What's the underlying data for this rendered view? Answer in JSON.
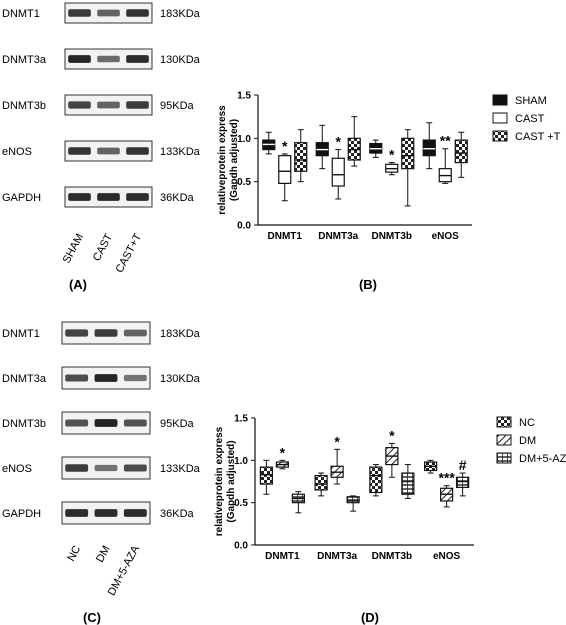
{
  "panel_labels": {
    "a": "(A)",
    "b": "(B)",
    "c": "(C)",
    "d": "(D)"
  },
  "blot_top": {
    "rows": [
      {
        "label": "DNMT1",
        "size": "183KDa",
        "intensity": [
          0.8,
          0.55,
          0.85
        ]
      },
      {
        "label": "DNMT3a",
        "size": "130KDa",
        "intensity": [
          0.95,
          0.5,
          0.9
        ]
      },
      {
        "label": "DNMT3b",
        "size": "95KDa",
        "intensity": [
          0.75,
          0.55,
          0.8
        ]
      },
      {
        "label": "eNOS",
        "size": "133KDa",
        "intensity": [
          0.85,
          0.55,
          0.85
        ]
      },
      {
        "label": "GAPDH",
        "size": "36KDa",
        "intensity": [
          0.9,
          0.9,
          0.9
        ]
      }
    ],
    "lanes": [
      "SHAM",
      "CAST",
      "CAST+T"
    ]
  },
  "blot_bottom": {
    "rows": [
      {
        "label": "DNMT1",
        "size": "183KDa",
        "intensity": [
          0.75,
          0.8,
          0.55
        ]
      },
      {
        "label": "DNMT3a",
        "size": "130KDa",
        "intensity": [
          0.7,
          0.95,
          0.45
        ]
      },
      {
        "label": "DNMT3b",
        "size": "95KDa",
        "intensity": [
          0.65,
          0.95,
          0.65
        ]
      },
      {
        "label": "eNOS",
        "size": "133KDa",
        "intensity": [
          0.8,
          0.45,
          0.7
        ]
      },
      {
        "label": "GAPDH",
        "size": "36KDa",
        "intensity": [
          0.9,
          0.9,
          0.9
        ]
      }
    ],
    "lanes": [
      "NC",
      "DM",
      "DM+5-AZA"
    ]
  },
  "chart_data": [
    {
      "type": "boxplot",
      "ylabel": "relativeprotein express\n(Gapdh adjusted)",
      "ylim": [
        0,
        1.5
      ],
      "yticks": [
        "0.0",
        "0.5",
        "1.0",
        "1.5"
      ],
      "categories": [
        "DNMT1",
        "DNMT3a",
        "DNMT3b",
        "eNOS"
      ],
      "legend_position": "right",
      "series": [
        {
          "name": "SHAM",
          "pattern": "solid",
          "boxes": [
            {
              "min": 0.82,
              "q1": 0.87,
              "median": 0.93,
              "q3": 0.98,
              "max": 1.07
            },
            {
              "min": 0.65,
              "q1": 0.8,
              "median": 0.87,
              "q3": 0.95,
              "max": 1.15
            },
            {
              "min": 0.78,
              "q1": 0.83,
              "median": 0.88,
              "q3": 0.94,
              "max": 0.98
            },
            {
              "min": 0.65,
              "q1": 0.8,
              "median": 0.88,
              "q3": 0.98,
              "max": 1.18
            }
          ]
        },
        {
          "name": "CAST",
          "pattern": "open",
          "boxes": [
            {
              "min": 0.28,
              "q1": 0.48,
              "median": 0.62,
              "q3": 0.8,
              "max": 0.82
            },
            {
              "min": 0.3,
              "q1": 0.45,
              "median": 0.58,
              "q3": 0.77,
              "max": 0.87
            },
            {
              "min": 0.58,
              "q1": 0.61,
              "median": 0.65,
              "q3": 0.7,
              "max": 0.72
            },
            {
              "min": 0.48,
              "q1": 0.5,
              "median": 0.57,
              "q3": 0.65,
              "max": 0.88
            }
          ]
        },
        {
          "name": "CAST +T",
          "pattern": "checker",
          "boxes": [
            {
              "min": 0.5,
              "q1": 0.62,
              "median": 0.75,
              "q3": 0.95,
              "max": 1.1
            },
            {
              "min": 0.68,
              "q1": 0.75,
              "median": 0.87,
              "q3": 1.0,
              "max": 1.25
            },
            {
              "min": 0.22,
              "q1": 0.65,
              "median": 0.8,
              "q3": 1.0,
              "max": 1.1
            },
            {
              "min": 0.55,
              "q1": 0.72,
              "median": 0.83,
              "q3": 0.98,
              "max": 1.07
            }
          ]
        }
      ],
      "annotations": [
        {
          "category": "DNMT1",
          "series": "CAST",
          "text": "*"
        },
        {
          "category": "DNMT3a",
          "series": "CAST",
          "text": "*"
        },
        {
          "category": "DNMT3b",
          "series": "CAST",
          "text": "*"
        },
        {
          "category": "eNOS",
          "series": "CAST",
          "text": "**"
        }
      ]
    },
    {
      "type": "boxplot",
      "ylabel": "relativeprotein express\n(Gapdh adjusted)",
      "ylim": [
        0,
        1.5
      ],
      "yticks": [
        "0.0",
        "0.5",
        "1.0",
        "1.5"
      ],
      "categories": [
        "DNMT1",
        "DNMT3a",
        "DNMT3b",
        "eNOS"
      ],
      "legend_position": "right",
      "series": [
        {
          "name": "NC",
          "pattern": "checker",
          "boxes": [
            {
              "min": 0.6,
              "q1": 0.72,
              "median": 0.83,
              "q3": 0.92,
              "max": 1.0
            },
            {
              "min": 0.58,
              "q1": 0.65,
              "median": 0.72,
              "q3": 0.82,
              "max": 0.85
            },
            {
              "min": 0.58,
              "q1": 0.62,
              "median": 0.82,
              "q3": 0.92,
              "max": 0.95
            },
            {
              "min": 0.85,
              "q1": 0.88,
              "median": 0.93,
              "q3": 0.98,
              "max": 1.0
            }
          ]
        },
        {
          "name": "DM",
          "pattern": "hatch",
          "boxes": [
            {
              "min": 0.9,
              "q1": 0.92,
              "median": 0.95,
              "q3": 0.98,
              "max": 1.0
            },
            {
              "min": 0.72,
              "q1": 0.8,
              "median": 0.86,
              "q3": 0.93,
              "max": 1.13
            },
            {
              "min": 0.8,
              "q1": 0.95,
              "median": 1.05,
              "q3": 1.15,
              "max": 1.2
            },
            {
              "min": 0.45,
              "q1": 0.52,
              "median": 0.6,
              "q3": 0.67,
              "max": 0.7
            }
          ]
        },
        {
          "name": "DM+5-AZA",
          "pattern": "grid",
          "boxes": [
            {
              "min": 0.38,
              "q1": 0.5,
              "median": 0.55,
              "q3": 0.6,
              "max": 0.63
            },
            {
              "min": 0.4,
              "q1": 0.5,
              "median": 0.53,
              "q3": 0.57,
              "max": 0.58
            },
            {
              "min": 0.55,
              "q1": 0.6,
              "median": 0.75,
              "q3": 0.85,
              "max": 0.95
            },
            {
              "min": 0.58,
              "q1": 0.68,
              "median": 0.75,
              "q3": 0.8,
              "max": 0.85
            }
          ]
        }
      ],
      "annotations": [
        {
          "category": "DNMT1",
          "series": "DM",
          "text": "*"
        },
        {
          "category": "DNMT3a",
          "series": "DM",
          "text": "*"
        },
        {
          "category": "DNMT3b",
          "series": "DM",
          "text": "*"
        },
        {
          "category": "eNOS",
          "series": "DM",
          "text": "***"
        },
        {
          "category": "eNOS",
          "series": "DM+5-AZA",
          "text": "#"
        }
      ]
    }
  ]
}
